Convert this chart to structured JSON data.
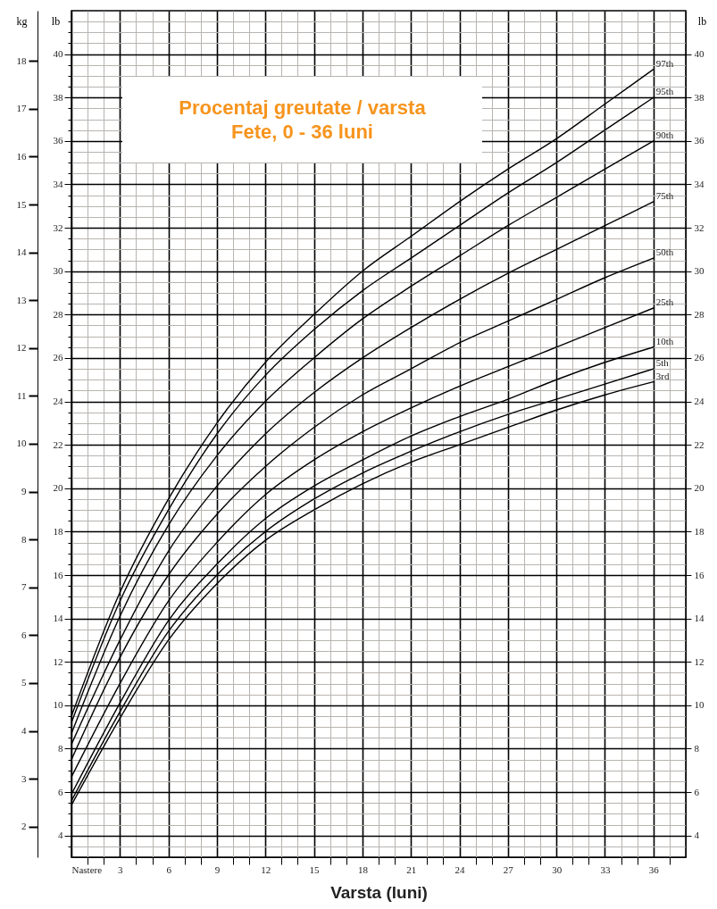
{
  "chart_data": {
    "type": "line",
    "title": "Procentaj greutate / varsta",
    "subtitle": "Fete, 0 - 36 luni",
    "xlabel": "Varsta (luni)",
    "ylabel": "lb",
    "y2label": "lb",
    "y3label": "kg",
    "x": [
      0,
      3,
      6,
      9,
      12,
      15,
      18,
      21,
      24,
      27,
      30,
      33,
      36
    ],
    "series": [
      {
        "name": "97th",
        "color": "#000000",
        "values": [
          9.5,
          15.2,
          19.5,
          23.0,
          25.8,
          28.0,
          30.0,
          31.6,
          33.2,
          34.7,
          36.1,
          37.7,
          39.3
        ]
      },
      {
        "name": "95th",
        "color": "#000000",
        "values": [
          9.2,
          14.8,
          19.0,
          22.5,
          25.2,
          27.3,
          29.1,
          30.6,
          32.1,
          33.6,
          35.0,
          36.5,
          38.0
        ]
      },
      {
        "name": "90th",
        "color": "#000000",
        "values": [
          8.7,
          14.1,
          18.3,
          21.5,
          24.0,
          26.0,
          27.8,
          29.3,
          30.7,
          32.1,
          33.4,
          34.7,
          36.0
        ]
      },
      {
        "name": "75th",
        "color": "#000000",
        "values": [
          8.2,
          13.0,
          17.1,
          20.1,
          22.5,
          24.4,
          26.0,
          27.4,
          28.7,
          29.9,
          31.0,
          32.1,
          33.2
        ]
      },
      {
        "name": "50th",
        "color": "#000000",
        "values": [
          7.5,
          12.2,
          16.0,
          18.8,
          21.0,
          22.8,
          24.3,
          25.5,
          26.7,
          27.7,
          28.7,
          29.7,
          30.6
        ]
      },
      {
        "name": "25th",
        "color": "#000000",
        "values": [
          6.7,
          11.0,
          14.8,
          17.5,
          19.7,
          21.3,
          22.6,
          23.7,
          24.7,
          25.6,
          26.5,
          27.4,
          28.3
        ]
      },
      {
        "name": "10th",
        "color": "#000000",
        "values": [
          5.9,
          10.1,
          13.9,
          16.5,
          18.6,
          20.1,
          21.3,
          22.4,
          23.3,
          24.1,
          25.0,
          25.8,
          26.5
        ]
      },
      {
        "name": "5th",
        "color": "#000000",
        "values": [
          5.6,
          9.7,
          13.4,
          16.0,
          18.0,
          19.5,
          20.7,
          21.7,
          22.6,
          23.4,
          24.1,
          24.8,
          25.5
        ]
      },
      {
        "name": "3rd",
        "color": "#000000",
        "values": [
          5.4,
          9.4,
          13.0,
          15.6,
          17.6,
          19.0,
          20.2,
          21.2,
          22.0,
          22.8,
          23.6,
          24.3,
          24.9
        ]
      }
    ],
    "xlim": [
      0,
      38
    ],
    "xticks": [
      {
        "value": 0,
        "label": "Nastere"
      },
      {
        "value": 1,
        "label": null
      },
      {
        "value": 2,
        "label": null
      },
      3,
      {
        "value": 4,
        "label": null
      },
      {
        "value": 5,
        "label": null
      },
      6,
      {
        "value": 7,
        "label": null
      },
      {
        "value": 8,
        "label": null
      },
      9,
      {
        "value": 10,
        "label": null
      },
      {
        "value": 11,
        "label": null
      },
      12,
      {
        "value": 13,
        "label": null
      },
      {
        "value": 14,
        "label": null
      },
      15,
      {
        "value": 16,
        "label": null
      },
      {
        "value": 17,
        "label": null
      },
      18,
      {
        "value": 19,
        "label": null
      },
      {
        "value": 20,
        "label": null
      },
      21,
      {
        "value": 22,
        "label": null
      },
      {
        "value": 23,
        "label": null
      },
      24,
      {
        "value": 25,
        "label": null
      },
      {
        "value": 26,
        "label": null
      },
      27,
      {
        "value": 28,
        "label": null
      },
      {
        "value": 29,
        "label": null
      },
      30,
      {
        "value": 31,
        "label": null
      },
      {
        "value": 32,
        "label": null
      },
      33,
      {
        "value": 34,
        "label": null
      },
      {
        "value": 35,
        "label": null
      },
      36,
      {
        "value": 37,
        "label": null
      }
    ],
    "ylim": [
      3,
      42
    ],
    "yticks": [
      {
        "value": 3.5,
        "label": null
      },
      4,
      {
        "value": 4.5,
        "label": null
      },
      {
        "value": 5,
        "label": null
      },
      {
        "value": 5.5,
        "label": null
      },
      6,
      {
        "value": 6.5,
        "label": null
      },
      {
        "value": 7,
        "label": null
      },
      {
        "value": 7.5,
        "label": null
      },
      8,
      {
        "value": 8.5,
        "label": null
      },
      {
        "value": 9,
        "label": null
      },
      {
        "value": 9.5,
        "label": null
      },
      10,
      {
        "value": 10.5,
        "label": null
      },
      {
        "value": 11,
        "label": null
      },
      {
        "value": 11.5,
        "label": null
      },
      12,
      {
        "value": 12.5,
        "label": null
      },
      {
        "value": 13,
        "label": null
      },
      {
        "value": 13.5,
        "label": null
      },
      14,
      {
        "value": 14.5,
        "label": null
      },
      {
        "value": 15,
        "label": null
      },
      {
        "value": 15.5,
        "label": null
      },
      16,
      {
        "value": 16.5,
        "label": null
      },
      {
        "value": 17,
        "label": null
      },
      {
        "value": 17.5,
        "label": null
      },
      18,
      {
        "value": 18.5,
        "label": null
      },
      {
        "value": 19,
        "label": null
      },
      {
        "value": 19.5,
        "label": null
      },
      20,
      {
        "value": 20.5,
        "label": null
      },
      {
        "value": 21,
        "label": null
      },
      {
        "value": 21.5,
        "label": null
      },
      22,
      {
        "value": 22.5,
        "label": null
      },
      {
        "value": 23,
        "label": null
      },
      {
        "value": 23.5,
        "label": null
      },
      24,
      {
        "value": 24.5,
        "label": null
      },
      {
        "value": 25,
        "label": null
      },
      {
        "value": 25.5,
        "label": null
      },
      26,
      {
        "value": 26.5,
        "label": null
      },
      {
        "value": 27,
        "label": null
      },
      {
        "value": 27.5,
        "label": null
      },
      28,
      {
        "value": 28.5,
        "label": null
      },
      {
        "value": 29,
        "label": null
      },
      {
        "value": 29.5,
        "label": null
      },
      30,
      {
        "value": 30.5,
        "label": null
      },
      {
        "value": 31,
        "label": null
      },
      {
        "value": 31.5,
        "label": null
      },
      32,
      {
        "value": 32.5,
        "label": null
      },
      {
        "value": 33,
        "label": null
      },
      {
        "value": 33.5,
        "label": null
      },
      34,
      {
        "value": 34.5,
        "label": null
      },
      {
        "value": 35,
        "label": null
      },
      {
        "value": 35.5,
        "label": null
      },
      36,
      {
        "value": 36.5,
        "label": null
      },
      {
        "value": 37,
        "label": null
      },
      {
        "value": 37.5,
        "label": null
      },
      38,
      {
        "value": 38.5,
        "label": null
      },
      {
        "value": 39,
        "label": null
      },
      {
        "value": 39.5,
        "label": null
      },
      40,
      {
        "value": 40.5,
        "label": null
      },
      {
        "value": 41,
        "label": null
      },
      {
        "value": 41.5,
        "label": null
      }
    ],
    "y2lim": [
      3,
      42
    ],
    "y2ticks": [
      4,
      6,
      8,
      10,
      12,
      14,
      16,
      18,
      20,
      22,
      24,
      26,
      28,
      30,
      32,
      34,
      36,
      38,
      40
    ],
    "y3lim": [
      1.36,
      19.05
    ],
    "y3ticks": [
      2,
      3,
      4,
      5,
      6,
      7,
      8,
      9,
      10,
      11,
      12,
      13,
      14,
      15,
      16,
      17,
      18
    ],
    "grid": true
  }
}
